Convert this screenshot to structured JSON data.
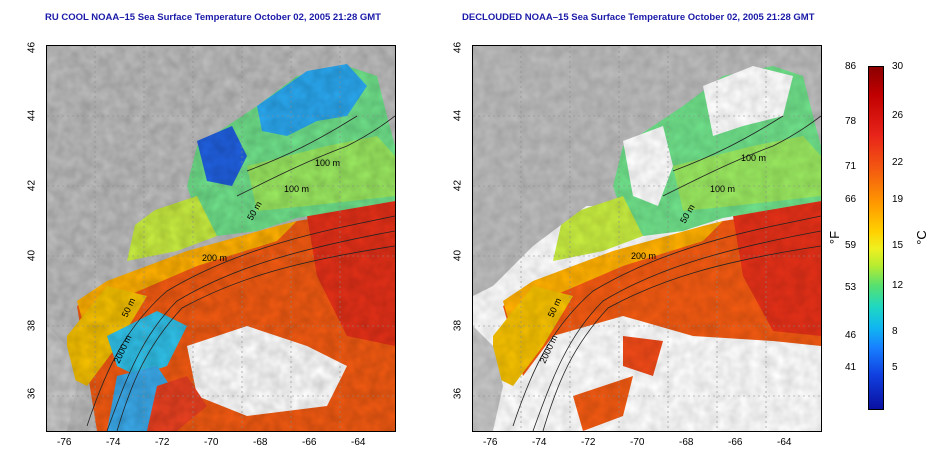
{
  "titles": {
    "left": "RU COOL NOAA–15 Sea Surface Temperature October 02, 2005 21:28 GMT",
    "right": "DECLOUDED NOAA–15 Sea Surface Temperature October 02, 2005 21:28 GMT"
  },
  "axes": {
    "x_ticks": [
      "-76",
      "-74",
      "-72",
      "-70",
      "-68",
      "-66",
      "-64"
    ],
    "y_ticks": [
      "46",
      "44",
      "42",
      "40",
      "38",
      "36"
    ]
  },
  "contour_labels": {
    "left": [
      "100 m",
      "100 m",
      "50 m",
      "200 m",
      "50 m",
      "2000 m"
    ],
    "right": [
      "100 m",
      "100 m",
      "50 m",
      "200 m",
      "50 m",
      "2000 m"
    ]
  },
  "colorbar": {
    "fahrenheit_ticks": [
      "86",
      "78",
      "71",
      "66",
      "59",
      "53",
      "46",
      "41"
    ],
    "celsius_ticks": [
      "30",
      "26",
      "22",
      "19",
      "15",
      "12",
      "8",
      "5"
    ],
    "unit_f": "°F",
    "unit_c": "°C"
  },
  "colors": {
    "land": "#bdbdbd",
    "cloud": "#ffffff",
    "title": "#1a1aa8"
  }
}
